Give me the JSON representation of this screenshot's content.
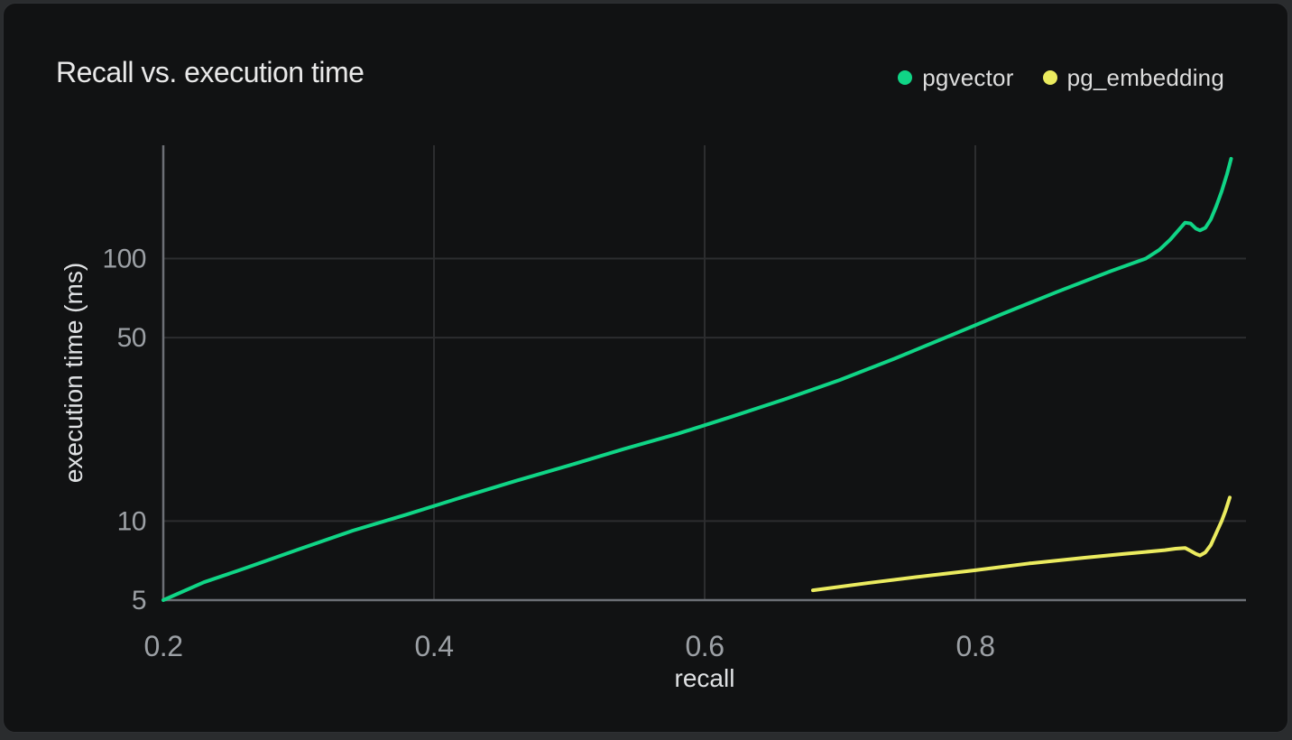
{
  "header": {
    "title": "Recall vs. execution time"
  },
  "chart_data": {
    "type": "line",
    "title": "Recall vs. execution time",
    "xlabel": "recall",
    "ylabel": "execution time (ms)",
    "x_scale": "linear",
    "y_scale": "log",
    "xlim": [
      0.2,
      1.0
    ],
    "ylim": [
      5,
      270
    ],
    "x_ticks": [
      0.2,
      0.4,
      0.6,
      0.8
    ],
    "y_ticks": [
      5,
      10,
      50,
      100
    ],
    "grid": true,
    "legend_position": "top-right",
    "series": [
      {
        "name": "pgvector",
        "color": "#10d586",
        "points": [
          [
            0.2,
            5.0
          ],
          [
            0.23,
            5.85
          ],
          [
            0.26,
            6.6
          ],
          [
            0.3,
            7.8
          ],
          [
            0.34,
            9.2
          ],
          [
            0.38,
            10.6
          ],
          [
            0.42,
            12.3
          ],
          [
            0.46,
            14.2
          ],
          [
            0.5,
            16.3
          ],
          [
            0.54,
            18.8
          ],
          [
            0.58,
            21.5
          ],
          [
            0.62,
            25.0
          ],
          [
            0.66,
            29.2
          ],
          [
            0.7,
            34.5
          ],
          [
            0.74,
            41.5
          ],
          [
            0.78,
            50.5
          ],
          [
            0.82,
            61.5
          ],
          [
            0.86,
            74.5
          ],
          [
            0.9,
            89.5
          ],
          [
            0.926,
            100
          ],
          [
            0.936,
            108
          ],
          [
            0.944,
            118
          ],
          [
            0.95,
            128
          ],
          [
            0.955,
            137
          ],
          [
            0.959,
            136
          ],
          [
            0.963,
            130
          ],
          [
            0.966,
            128
          ],
          [
            0.97,
            131
          ],
          [
            0.974,
            141
          ],
          [
            0.978,
            158
          ],
          [
            0.982,
            180
          ],
          [
            0.986,
            210
          ],
          [
            0.989,
            240
          ]
        ]
      },
      {
        "name": "pg_embedding",
        "color": "#ebeb5f",
        "points": [
          [
            0.68,
            5.45
          ],
          [
            0.72,
            5.8
          ],
          [
            0.76,
            6.15
          ],
          [
            0.8,
            6.5
          ],
          [
            0.84,
            6.9
          ],
          [
            0.88,
            7.25
          ],
          [
            0.91,
            7.5
          ],
          [
            0.94,
            7.75
          ],
          [
            0.948,
            7.85
          ],
          [
            0.955,
            7.9
          ],
          [
            0.959,
            7.7
          ],
          [
            0.963,
            7.5
          ],
          [
            0.966,
            7.4
          ],
          [
            0.97,
            7.6
          ],
          [
            0.974,
            8.1
          ],
          [
            0.978,
            9.0
          ],
          [
            0.982,
            10.0
          ],
          [
            0.985,
            11.0
          ],
          [
            0.988,
            12.3
          ]
        ]
      }
    ],
    "colors": {
      "page_background": "#2a2c2e",
      "card_background": "#111213",
      "card_border": "#2e3033",
      "grid": "#2c2d2f",
      "axis": "#6d7076",
      "tick_text": "#9ca0a5",
      "label_text": "#dfe1e3",
      "title_text": "#e9e9e9",
      "legend_text": "#dddddd"
    }
  }
}
